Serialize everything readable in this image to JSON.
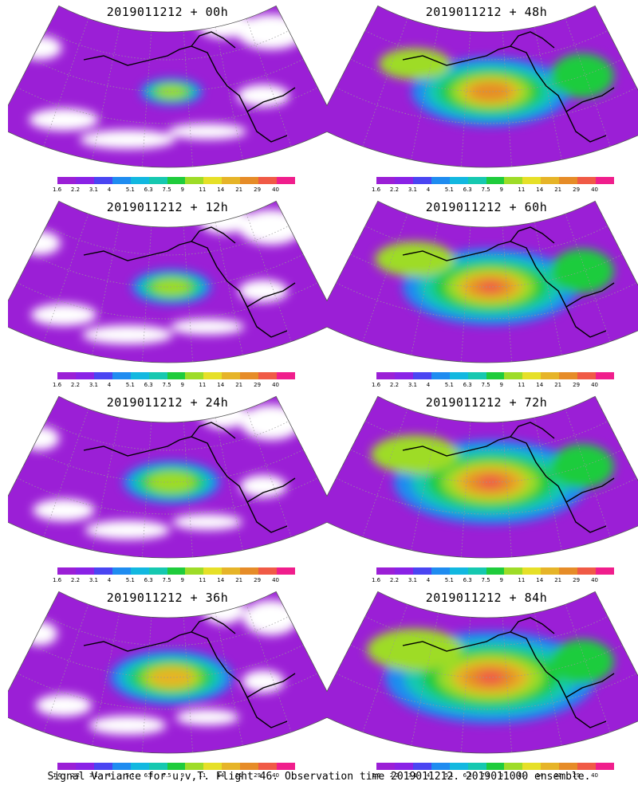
{
  "panels": [
    {
      "title": "2019011212 + 00h",
      "lead_hours": 0
    },
    {
      "title": "2019011212 + 48h",
      "lead_hours": 48
    },
    {
      "title": "2019011212 + 12h",
      "lead_hours": 12
    },
    {
      "title": "2019011212 + 60h",
      "lead_hours": 60
    },
    {
      "title": "2019011212 + 24h",
      "lead_hours": 24
    },
    {
      "title": "2019011212 + 72h",
      "lead_hours": 72
    },
    {
      "title": "2019011212 + 36h",
      "lead_hours": 36
    },
    {
      "title": "2019011212 + 84h",
      "lead_hours": 84
    }
  ],
  "colorbar": {
    "labels": [
      "1.6",
      "2.2",
      "3.1",
      "4",
      "5.1",
      "6.3",
      "7.5",
      "9",
      "11",
      "14",
      "21",
      "29",
      "40"
    ],
    "colors": [
      "#9b1fd6",
      "#8a22e6",
      "#4a45f2",
      "#1f8cf0",
      "#12b8e0",
      "#16c8b0",
      "#1fcc3c",
      "#9edc28",
      "#e6e028",
      "#e6b428",
      "#e68c28",
      "#f05a46",
      "#f01e8c"
    ]
  },
  "footer": "Signal Variance for u,v,T. Flight 46. Observation time 2019011212. 2019011000 ensemble."
}
